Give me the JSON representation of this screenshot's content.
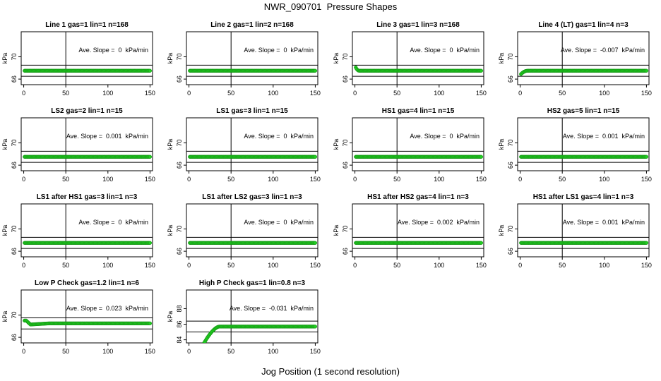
{
  "page": {
    "title": "NWR_090701  Pressure Shapes",
    "xlabel": "Jog Position (1 second resolution)"
  },
  "colors": {
    "points": "#22cc22",
    "point_edge": "#0f8a0f",
    "lines": "#000000"
  },
  "chart_data": [
    {
      "type": "scatter",
      "title": "Line 1 gas=1 lin=1 n=168",
      "ylabel": "kPa",
      "annotation": "Ave. Slope =  0  kPa/min",
      "xlim": [
        -3,
        153
      ],
      "ylim": [
        65,
        74.5
      ],
      "xticks": [
        0,
        50,
        100,
        150
      ],
      "yticks": [
        66,
        70
      ],
      "hlines": [
        66.5,
        68.5
      ],
      "vline": 50,
      "series": [
        {
          "name": "pressure",
          "x_range": [
            1,
            150
          ],
          "values": [
            67.5
          ],
          "shape": "flat"
        }
      ]
    },
    {
      "type": "scatter",
      "title": "Line 2 gas=1 lin=2 n=168",
      "ylabel": "kPa",
      "annotation": "Ave. Slope =  0  kPa/min",
      "xlim": [
        -3,
        153
      ],
      "ylim": [
        65,
        74.5
      ],
      "xticks": [
        0,
        50,
        100,
        150
      ],
      "yticks": [
        66,
        70
      ],
      "hlines": [
        66.5,
        68.5
      ],
      "vline": 50,
      "series": [
        {
          "name": "pressure",
          "x_range": [
            1,
            150
          ],
          "values": [
            67.5
          ],
          "shape": "flat"
        }
      ]
    },
    {
      "type": "scatter",
      "title": "Line 3 gas=1 lin=3 n=168",
      "ylabel": "kPa",
      "annotation": "Ave. Slope =  0  kPa/min",
      "xlim": [
        -3,
        153
      ],
      "ylim": [
        65,
        74.5
      ],
      "xticks": [
        0,
        50,
        100,
        150
      ],
      "yticks": [
        66,
        70
      ],
      "hlines": [
        66.5,
        68.5
      ],
      "vline": 50,
      "series": [
        {
          "name": "pressure",
          "x_range": [
            1,
            150
          ],
          "values": [
            67.5
          ],
          "start": 68.1,
          "settle": 4,
          "shape": "settle"
        }
      ]
    },
    {
      "type": "scatter",
      "title": "Line 4 (LT) gas=1 lin=4 n=3",
      "ylabel": "kPa",
      "annotation": "Ave. Slope =  -0.007  kPa/min",
      "xlim": [
        -3,
        153
      ],
      "ylim": [
        65,
        74.5
      ],
      "xticks": [
        0,
        50,
        100,
        150
      ],
      "yticks": [
        66,
        70
      ],
      "hlines": [
        66.5,
        68.5
      ],
      "vline": 50,
      "series": [
        {
          "name": "pressure",
          "x_range": [
            1,
            150
          ],
          "values": [
            67.5
          ],
          "start": 66.9,
          "settle": 8,
          "shape": "settle"
        }
      ]
    },
    {
      "type": "scatter",
      "title": "LS2 gas=2 lin=1 n=15",
      "ylabel": "kPa",
      "annotation": "Ave. Slope =  0.001  kPa/min",
      "xlim": [
        -3,
        153
      ],
      "ylim": [
        65,
        74.5
      ],
      "xticks": [
        0,
        50,
        100,
        150
      ],
      "yticks": [
        66,
        70
      ],
      "hlines": [
        66.5,
        68.5
      ],
      "vline": 50,
      "series": [
        {
          "name": "pressure",
          "x_range": [
            1,
            150
          ],
          "values": [
            67.5
          ],
          "shape": "flat"
        }
      ]
    },
    {
      "type": "scatter",
      "title": "LS1 gas=3 lin=1 n=15",
      "ylabel": "kPa",
      "annotation": "Ave. Slope =  0  kPa/min",
      "xlim": [
        -3,
        153
      ],
      "ylim": [
        65,
        74.5
      ],
      "xticks": [
        0,
        50,
        100,
        150
      ],
      "yticks": [
        66,
        70
      ],
      "hlines": [
        66.5,
        68.5
      ],
      "vline": 50,
      "series": [
        {
          "name": "pressure",
          "x_range": [
            1,
            150
          ],
          "values": [
            67.5
          ],
          "shape": "flat"
        }
      ]
    },
    {
      "type": "scatter",
      "title": "HS1 gas=4 lin=1 n=15",
      "ylabel": "kPa",
      "annotation": "Ave. Slope =  0  kPa/min",
      "xlim": [
        -3,
        153
      ],
      "ylim": [
        65,
        74.5
      ],
      "xticks": [
        0,
        50,
        100,
        150
      ],
      "yticks": [
        66,
        70
      ],
      "hlines": [
        66.5,
        68.5
      ],
      "vline": 50,
      "series": [
        {
          "name": "pressure",
          "x_range": [
            1,
            150
          ],
          "values": [
            67.5
          ],
          "shape": "flat"
        }
      ]
    },
    {
      "type": "scatter",
      "title": "HS2 gas=5 lin=1 n=15",
      "ylabel": "kPa",
      "annotation": "Ave. Slope =  0.001  kPa/min",
      "xlim": [
        -3,
        153
      ],
      "ylim": [
        65,
        74.5
      ],
      "xticks": [
        0,
        50,
        100,
        150
      ],
      "yticks": [
        66,
        70
      ],
      "hlines": [
        66.5,
        68.5
      ],
      "vline": 50,
      "series": [
        {
          "name": "pressure",
          "x_range": [
            1,
            150
          ],
          "values": [
            67.5
          ],
          "shape": "flat"
        }
      ]
    },
    {
      "type": "scatter",
      "title": "LS1 after HS1 gas=3 lin=1 n=3",
      "ylabel": "kPa",
      "annotation": "Ave. Slope =  0  kPa/min",
      "xlim": [
        -3,
        153
      ],
      "ylim": [
        65,
        74.5
      ],
      "xticks": [
        0,
        50,
        100,
        150
      ],
      "yticks": [
        66,
        70
      ],
      "hlines": [
        66.5,
        68.5
      ],
      "vline": 50,
      "series": [
        {
          "name": "pressure",
          "x_range": [
            1,
            150
          ],
          "values": [
            67.5
          ],
          "shape": "flat"
        }
      ]
    },
    {
      "type": "scatter",
      "title": "LS1 after LS2 gas=3 lin=1 n=3",
      "ylabel": "kPa",
      "annotation": "Ave. Slope =  0  kPa/min",
      "xlim": [
        -3,
        153
      ],
      "ylim": [
        65,
        74.5
      ],
      "xticks": [
        0,
        50,
        100,
        150
      ],
      "yticks": [
        66,
        70
      ],
      "hlines": [
        66.5,
        68.5
      ],
      "vline": 50,
      "series": [
        {
          "name": "pressure",
          "x_range": [
            1,
            150
          ],
          "values": [
            67.5
          ],
          "shape": "flat"
        }
      ]
    },
    {
      "type": "scatter",
      "title": "HS1 after HS2 gas=4 lin=1 n=3",
      "ylabel": "kPa",
      "annotation": "Ave. Slope =  0.002  kPa/min",
      "xlim": [
        -3,
        153
      ],
      "ylim": [
        65,
        74.5
      ],
      "xticks": [
        0,
        50,
        100,
        150
      ],
      "yticks": [
        66,
        70
      ],
      "hlines": [
        66.5,
        68.5
      ],
      "vline": 50,
      "series": [
        {
          "name": "pressure",
          "x_range": [
            1,
            150
          ],
          "values": [
            67.5
          ],
          "shape": "flat"
        }
      ]
    },
    {
      "type": "scatter",
      "title": "HS1 after LS1 gas=4 lin=1 n=3",
      "ylabel": "kPa",
      "annotation": "Ave. Slope =  0.001  kPa/min",
      "xlim": [
        -3,
        153
      ],
      "ylim": [
        65,
        74.5
      ],
      "xticks": [
        0,
        50,
        100,
        150
      ],
      "yticks": [
        66,
        70
      ],
      "hlines": [
        66.5,
        68.5
      ],
      "vline": 50,
      "series": [
        {
          "name": "pressure",
          "x_range": [
            1,
            150
          ],
          "values": [
            67.5
          ],
          "shape": "flat"
        }
      ]
    },
    {
      "type": "scatter",
      "title": "Low P Check gas=1.2 lin=1 n=6",
      "ylabel": "kPa",
      "annotation": "Ave. Slope =  0.023  kPa/min",
      "xlim": [
        -3,
        153
      ],
      "ylim": [
        65,
        74.5
      ],
      "xticks": [
        0,
        50,
        100,
        150
      ],
      "yticks": [
        66,
        70
      ],
      "hlines": [
        67.5,
        69.5
      ],
      "vline": 50,
      "series": [
        {
          "name": "pressure",
          "x_range": [
            1,
            150
          ],
          "values": [
            68.5
          ],
          "start": 69.0,
          "dip": 68.3,
          "settle": 30,
          "shape": "dip"
        }
      ]
    },
    {
      "type": "scatter",
      "title": "High P Check gas=1 lin=0.8 n=3",
      "ylabel": "kPa",
      "annotation": "Ave. Slope =  -0.031  kPa/min",
      "xlim": [
        -3,
        153
      ],
      "ylim": [
        83.6,
        90.4
      ],
      "xticks": [
        0,
        50,
        100,
        150
      ],
      "yticks": [
        84,
        86,
        88
      ],
      "hlines": [
        85.0,
        86.4
      ],
      "vline": 50,
      "series": [
        {
          "name": "pressure",
          "x_range": [
            18,
            150
          ],
          "values": [
            85.7
          ],
          "start": 83.6,
          "settle": 36,
          "shape": "rise"
        }
      ]
    }
  ]
}
